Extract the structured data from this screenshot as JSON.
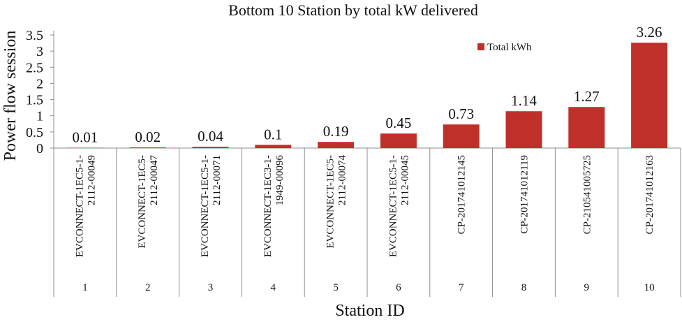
{
  "chart_data": {
    "type": "bar",
    "title": "Bottom 10 Station by total kW delivered",
    "xlabel": "Station ID",
    "ylabel": "Power flow session",
    "ylim": [
      0,
      3.5
    ],
    "yticks": [
      "0",
      "0.5",
      "1",
      "1.5",
      "2",
      "2.5",
      "3",
      "3.5"
    ],
    "categories": [
      {
        "name": [
          "EVCONNECT-1EC5-1-",
          "2112-00049"
        ],
        "index": "1"
      },
      {
        "name": [
          "EVCONNECT-1EC5-",
          "2112-00047"
        ],
        "index": "2"
      },
      {
        "name": [
          "EVCONNECT-1EC5-1-",
          "2112-00071"
        ],
        "index": "3"
      },
      {
        "name": [
          "EVCONNECT-1EC3-1-",
          "1949-00096"
        ],
        "index": "4"
      },
      {
        "name": [
          "EVCONNECT-1EC5-",
          "2112-00074"
        ],
        "index": "5"
      },
      {
        "name": [
          "EVCONNECT-1EC5-1-",
          "2112-00045"
        ],
        "index": "6"
      },
      {
        "name": [
          "CP-201741012145"
        ],
        "index": "7"
      },
      {
        "name": [
          "CP-201741012119"
        ],
        "index": "8"
      },
      {
        "name": [
          "CP-210541005725"
        ],
        "index": "9"
      },
      {
        "name": [
          "CP-201741012163"
        ],
        "index": "10"
      }
    ],
    "series": [
      {
        "name": "Total kWh",
        "color": "#c0302a",
        "values": [
          0.01,
          0.02,
          0.04,
          0.1,
          0.19,
          0.45,
          0.73,
          1.14,
          1.27,
          3.26
        ],
        "labels": [
          "0.01",
          "0.02",
          "0.04",
          "0.1",
          "0.19",
          "0.45",
          "0.73",
          "1.14",
          "1.27",
          "3.26"
        ]
      }
    ],
    "legend_position": "top-right",
    "grid": false
  }
}
